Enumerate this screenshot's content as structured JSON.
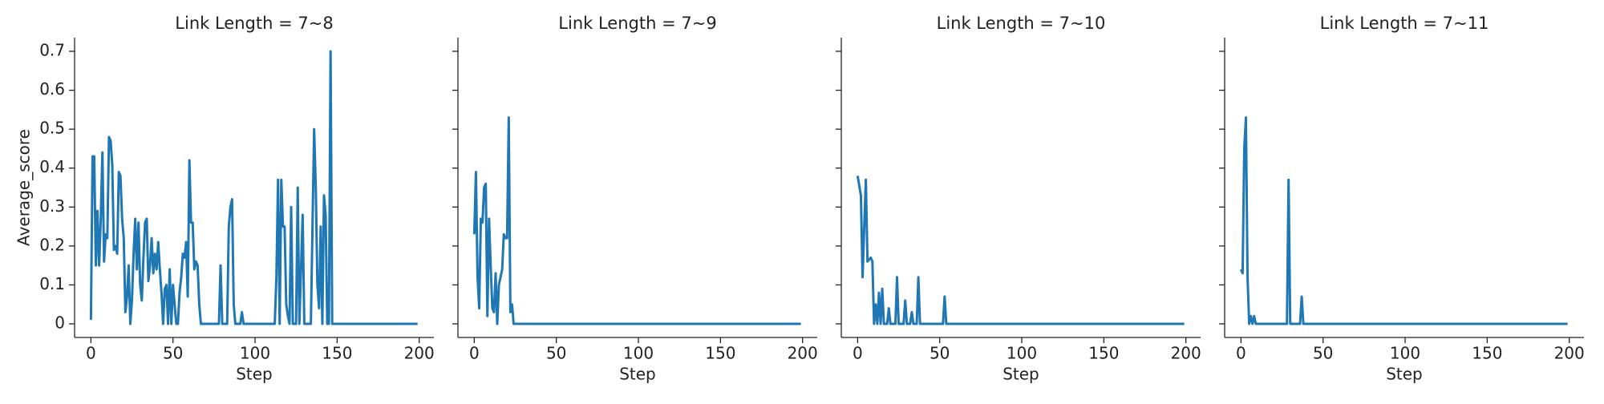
{
  "chart_data": [
    {
      "type": "line",
      "title": "Link Length = 7~8",
      "xlabel": "Step",
      "ylabel": "Average_score",
      "x": [
        0,
        1,
        2,
        3,
        4,
        5,
        6,
        7,
        8,
        9,
        10,
        11,
        12,
        13,
        14,
        15,
        16,
        17,
        18,
        19,
        20,
        21,
        22,
        23,
        24,
        25,
        26,
        27,
        28,
        29,
        30,
        31,
        32,
        33,
        34,
        35,
        36,
        37,
        38,
        39,
        40,
        41,
        42,
        43,
        44,
        45,
        46,
        47,
        48,
        49,
        50,
        51,
        52,
        53,
        54,
        55,
        56,
        57,
        58,
        59,
        60,
        61,
        62,
        63,
        64,
        65,
        66,
        67,
        78,
        79,
        80,
        83,
        84,
        85,
        86,
        87,
        88,
        91,
        92,
        93,
        112,
        113,
        114,
        115,
        116,
        117,
        118,
        119,
        120,
        121,
        122,
        123,
        125,
        126,
        127,
        129,
        130,
        134,
        135,
        136,
        137,
        138,
        139,
        140,
        141,
        142,
        143,
        144,
        145,
        146,
        147,
        199
      ],
      "values": [
        0.01,
        0.43,
        0.43,
        0.15,
        0.29,
        0.15,
        0.27,
        0.44,
        0.16,
        0.23,
        0.22,
        0.48,
        0.47,
        0.41,
        0.19,
        0.2,
        0.18,
        0.39,
        0.38,
        0.27,
        0.22,
        0.03,
        0.07,
        0.15,
        0.0,
        0.06,
        0.18,
        0.27,
        0.14,
        0.26,
        0.1,
        0.06,
        0.17,
        0.26,
        0.27,
        0.11,
        0.15,
        0.22,
        0.13,
        0.18,
        0.14,
        0.21,
        0.14,
        0.08,
        0.0,
        0.09,
        0.1,
        0.0,
        0.14,
        0.0,
        0.1,
        0.05,
        0.0,
        0.0,
        0.08,
        0.12,
        0.18,
        0.17,
        0.21,
        0.07,
        0.42,
        0.26,
        0.26,
        0.14,
        0.16,
        0.15,
        0.05,
        0.0,
        0.0,
        0.15,
        0.0,
        0.0,
        0.25,
        0.3,
        0.32,
        0.05,
        0.0,
        0.0,
        0.03,
        0.0,
        0.0,
        0.12,
        0.37,
        0.0,
        0.37,
        0.25,
        0.25,
        0.05,
        0.02,
        0.0,
        0.3,
        0.0,
        0.0,
        0.35,
        0.0,
        0.28,
        0.0,
        0.0,
        0.25,
        0.5,
        0.35,
        0.1,
        0.04,
        0.25,
        0.0,
        0.33,
        0.28,
        0.0,
        0.0,
        0.7,
        0.0,
        0.0
      ],
      "color": "#1f77b4",
      "xlim": [
        -9.95,
        208.95
      ],
      "ylim": [
        -0.035,
        0.735
      ],
      "xticks": [
        0,
        50,
        100,
        150,
        200
      ],
      "yticks": [
        0.0,
        0.1,
        0.2,
        0.3,
        0.4,
        0.5,
        0.6,
        0.7
      ]
    },
    {
      "type": "line",
      "title": "Link Length = 7~9",
      "xlabel": "Step",
      "x": [
        0,
        1,
        2,
        3,
        4,
        5,
        6,
        7,
        8,
        9,
        10,
        11,
        12,
        13,
        14,
        15,
        16,
        17,
        18,
        19,
        20,
        21,
        22,
        23,
        24,
        199
      ],
      "values": [
        0.23,
        0.39,
        0.12,
        0.04,
        0.27,
        0.26,
        0.35,
        0.36,
        0.02,
        0.27,
        0.15,
        0.04,
        0.03,
        0.13,
        0.0,
        0.1,
        0.12,
        0.14,
        0.23,
        0.22,
        0.22,
        0.53,
        0.03,
        0.05,
        0.0,
        0.0
      ],
      "color": "#1f77b4",
      "xlim": [
        -9.95,
        208.95
      ],
      "ylim": [
        -0.035,
        0.735
      ],
      "xticks": [
        0,
        50,
        100,
        150,
        200
      ]
    },
    {
      "type": "line",
      "title": "Link Length = 7~10",
      "xlabel": "Step",
      "x": [
        0,
        2,
        3,
        5,
        6,
        8,
        9,
        10,
        11,
        12,
        13,
        14,
        15,
        16,
        18,
        19,
        20,
        23,
        24,
        25,
        28,
        29,
        30,
        32,
        33,
        34,
        36,
        37,
        38,
        52,
        53,
        54,
        199
      ],
      "values": [
        0.38,
        0.33,
        0.12,
        0.37,
        0.16,
        0.17,
        0.16,
        0.0,
        0.05,
        0.0,
        0.08,
        0.0,
        0.09,
        0.0,
        0.0,
        0.04,
        0.0,
        0.0,
        0.12,
        0.0,
        0.0,
        0.06,
        0.0,
        0.0,
        0.03,
        0.0,
        0.0,
        0.12,
        0.0,
        0.0,
        0.07,
        0.0,
        0.0
      ],
      "color": "#1f77b4",
      "xlim": [
        -9.95,
        208.95
      ],
      "ylim": [
        -0.035,
        0.735
      ],
      "xticks": [
        0,
        50,
        100,
        150,
        200
      ]
    },
    {
      "type": "line",
      "title": "Link Length = 7~11",
      "xlabel": "Step",
      "x": [
        0,
        1,
        2,
        3,
        4,
        5,
        6,
        7,
        8,
        9,
        28,
        29,
        30,
        36,
        37,
        38,
        199
      ],
      "values": [
        0.14,
        0.13,
        0.45,
        0.53,
        0.12,
        0.0,
        0.02,
        0.0,
        0.02,
        0.0,
        0.0,
        0.37,
        0.0,
        0.0,
        0.07,
        0.0,
        0.0
      ],
      "color": "#1f77b4",
      "xlim": [
        -9.95,
        208.95
      ],
      "ylim": [
        -0.035,
        0.735
      ],
      "xticks": [
        0,
        50,
        100,
        150,
        200
      ]
    }
  ]
}
